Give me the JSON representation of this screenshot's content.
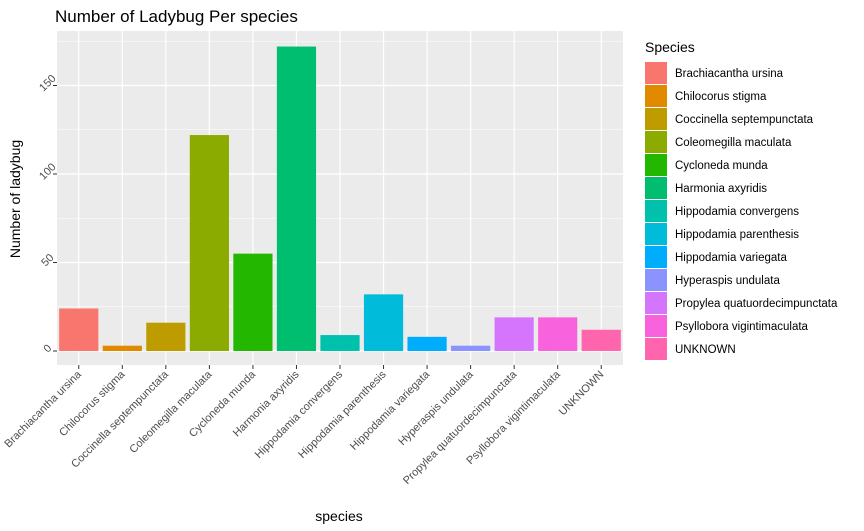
{
  "chart_data": {
    "type": "bar",
    "title": "Number of Ladybug Per species",
    "xlabel": "species",
    "ylabel": "Number of ladybug",
    "ylim": [
      0,
      172
    ],
    "yticks": [
      0,
      50,
      100,
      150
    ],
    "ytick_labels": [
      "0",
      "50",
      "100",
      "150"
    ],
    "grid": true,
    "legend_title": "Species",
    "legend_position": "right",
    "categories": [
      "Brachiacantha ursina",
      "Chilocorus stigma",
      "Coccinella septempunctata",
      "Coleomegilla maculata",
      "Cycloneda munda",
      "Harmonia axyridis",
      "Hippodamia convergens",
      "Hippodamia parenthesis",
      "Hippodamia variegata",
      "Hyperaspis undulata",
      "Propylea quatuordecimpunctata",
      "Psyllobora vigintimaculata",
      "UNKNOWN"
    ],
    "values": [
      24,
      3,
      16,
      122,
      55,
      172,
      9,
      32,
      8,
      3,
      19,
      19,
      12
    ],
    "colors": [
      "#F8766D",
      "#E18A00",
      "#BE9C00",
      "#8CAB00",
      "#24B700",
      "#00BE70",
      "#00C1AB",
      "#00BBDA",
      "#00ACFC",
      "#8B93FF",
      "#D575FE",
      "#F962DD",
      "#FF65AC"
    ],
    "legend_entries": [
      "Brachiacantha ursina",
      "Chilocorus stigma",
      "Coccinella septempunctata",
      "Coleomegilla maculata",
      "Cycloneda munda",
      "Harmonia axyridis",
      "Hippodamia convergens",
      "Hippodamia parenthesis",
      "Hippodamia variegata",
      "Hyperaspis undulata",
      "Propylea quatuordecimpunctata",
      "Psyllobora vigintimaculata",
      "UNKNOWN"
    ],
    "panel_background": "#EBEBEB",
    "gridline_color": "#FFFFFF"
  }
}
